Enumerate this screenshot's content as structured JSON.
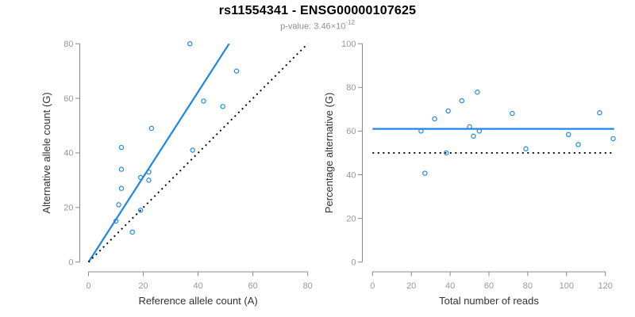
{
  "header": {
    "title": "rs11554341 - ENSG00000107625",
    "pvalue_label": "p-value: ",
    "pvalue_mantissa": "3.46",
    "pvalue_multiplier": "×10",
    "pvalue_exponent": "-12"
  },
  "colors": {
    "accent": "#1e87e5",
    "identity": "#000000",
    "axis": "#888888",
    "tick_label": "#999999",
    "axis_title": "#333333",
    "title": "#000000",
    "subtitle": "#8e8e8e",
    "background": "#ffffff"
  },
  "chart_data": [
    {
      "type": "scatter",
      "name": "allele-counts",
      "xlabel": "Reference allele count (A)",
      "ylabel": "Alternative allele count (G)",
      "xlim": [
        0,
        80
      ],
      "ylim": [
        0,
        80
      ],
      "xticks": [
        0,
        20,
        40,
        60,
        80
      ],
      "yticks": [
        0,
        20,
        40,
        60,
        80
      ],
      "grid": false,
      "legend": "none",
      "marker": "open-circle",
      "points": [
        [
          37,
          80
        ],
        [
          54,
          70
        ],
        [
          42,
          59
        ],
        [
          49,
          57
        ],
        [
          23,
          49
        ],
        [
          12,
          42
        ],
        [
          38,
          41
        ],
        [
          12,
          34
        ],
        [
          22,
          33
        ],
        [
          19,
          31
        ],
        [
          22,
          30
        ],
        [
          12,
          27
        ],
        [
          11,
          21
        ],
        [
          19,
          19
        ],
        [
          10,
          15
        ],
        [
          16,
          11
        ]
      ],
      "lines": [
        {
          "name": "fit-line",
          "style": "solid",
          "color_key": "accent",
          "x": [
            0,
            51.3
          ],
          "y": [
            0,
            80
          ]
        },
        {
          "name": "identity-line",
          "style": "dotted",
          "color_key": "identity",
          "x": [
            0,
            80
          ],
          "y": [
            0,
            80
          ]
        }
      ]
    },
    {
      "type": "scatter",
      "name": "percentage-alternative",
      "xlabel": "Total number of reads",
      "ylabel": "Percentage alternative (G)",
      "xlim": [
        0,
        124
      ],
      "ylim": [
        0,
        100
      ],
      "xticks": [
        0,
        20,
        40,
        60,
        80,
        100,
        120
      ],
      "yticks": [
        0,
        20,
        40,
        60,
        80,
        100
      ],
      "grid": false,
      "legend": "none",
      "marker": "open-circle",
      "points": [
        [
          117,
          68.4
        ],
        [
          124,
          56.5
        ],
        [
          101,
          58.4
        ],
        [
          106,
          53.8
        ],
        [
          72,
          68.1
        ],
        [
          54,
          77.8
        ],
        [
          79,
          51.9
        ],
        [
          46,
          73.9
        ],
        [
          55,
          60.0
        ],
        [
          50,
          62.0
        ],
        [
          52,
          57.7
        ],
        [
          39,
          69.2
        ],
        [
          32,
          65.6
        ],
        [
          38,
          50.0
        ],
        [
          25,
          60.0
        ],
        [
          27,
          40.7
        ]
      ],
      "lines": [
        {
          "name": "mean-percentage-line",
          "style": "solid",
          "color_key": "accent",
          "x": [
            0,
            124.5
          ],
          "y": [
            61,
            61
          ]
        },
        {
          "name": "fifty-percent-line",
          "style": "dotted",
          "color_key": "identity",
          "x": [
            0,
            124.5
          ],
          "y": [
            50,
            50
          ]
        }
      ]
    }
  ]
}
